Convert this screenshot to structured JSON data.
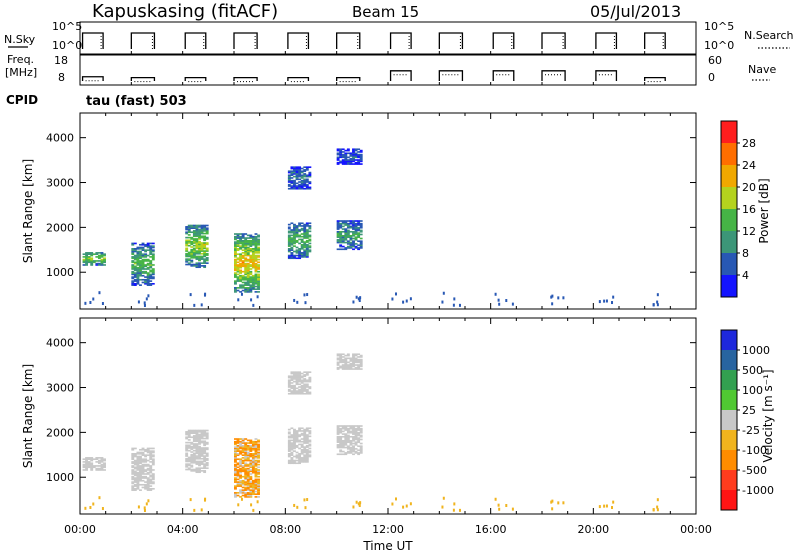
{
  "header": {
    "station": "Kapuskasing (fitACF)",
    "beam": "Beam 15",
    "date": "05/Jul/2013"
  },
  "strip": {
    "nsky_label": "N.Sky",
    "nsky_top": "10^5",
    "nsky_bottom": "10^0",
    "nsearch_label": "N.Search",
    "freq_label_1": "Freq.",
    "freq_label_2": "[MHz]",
    "freq_top": "18",
    "freq_bottom": "8",
    "nave_top": "60",
    "nave_bottom": "0",
    "nave_label": "Nave",
    "cpid_label": "CPID",
    "cpid_value": "tau (fast) 503"
  },
  "axes": {
    "y_label": "Slant Range [km]",
    "x_label": "Time UT",
    "x_ticks": [
      "00:00",
      "04:00",
      "08:00",
      "12:00",
      "16:00",
      "20:00",
      "00:00"
    ],
    "y_ticks": [
      "1000",
      "2000",
      "3000",
      "4000"
    ]
  },
  "power_scale": {
    "label": "Power [dB]",
    "ticks": [
      "4",
      "8",
      "12",
      "16",
      "20",
      "24",
      "28"
    ],
    "colors": [
      "#1414ff",
      "#2858b4",
      "#3c9678",
      "#46b446",
      "#b4d21e",
      "#f0a800",
      "#ff6e00",
      "#ff1e1e"
    ]
  },
  "velocity_scale": {
    "label": "Velocity [m s⁻¹]",
    "ticks": [
      "1000",
      "500",
      "100",
      "25",
      "-25",
      "-100",
      "-500",
      "-1000"
    ],
    "colors": [
      "#1e28dc",
      "#2864a0",
      "#32a050",
      "#50c832",
      "#c8c8c8",
      "#f0b41e",
      "#ff8c00",
      "#ff3c1e",
      "#ff1414"
    ]
  },
  "chart_data": {
    "type": "heatmap",
    "x_range_hours": [
      0,
      24
    ],
    "y_range_km": [
      180,
      4550
    ],
    "observation_blocks_hours": [
      [
        0.1,
        0.9
      ],
      [
        2.0,
        2.9
      ],
      [
        4.1,
        4.9
      ],
      [
        6.0,
        6.9
      ],
      [
        8.1,
        8.9
      ],
      [
        10.0,
        10.9
      ],
      [
        12.1,
        12.9
      ],
      [
        14.0,
        14.9
      ],
      [
        16.1,
        16.9
      ],
      [
        18.0,
        18.9
      ],
      [
        20.1,
        20.9
      ],
      [
        22.0,
        22.8
      ]
    ],
    "freq_mhz_blocks": [
      10.5,
      10,
      10,
      10,
      10,
      10,
      14,
      14,
      14,
      14,
      14,
      10
    ],
    "echo_regions": [
      {
        "t": [
          0.1,
          0.9
        ],
        "range_km": [
          1150,
          1450
        ],
        "power_db": 18,
        "velocity_ms": 0
      },
      {
        "t": [
          2.0,
          2.9
        ],
        "range_km": [
          700,
          1650
        ],
        "power_db": 14,
        "velocity_ms": 0
      },
      {
        "t": [
          4.1,
          4.9
        ],
        "range_km": [
          1100,
          2050
        ],
        "power_db": 18,
        "velocity_ms": 0
      },
      {
        "t": [
          6.0,
          6.9
        ],
        "range_km": [
          550,
          1850
        ],
        "power_db": 22,
        "velocity_ms": -100
      },
      {
        "t": [
          8.1,
          8.9
        ],
        "range_km": [
          1300,
          2100
        ],
        "power_db": 14,
        "velocity_ms": 0
      },
      {
        "t": [
          8.1,
          8.9
        ],
        "range_km": [
          2850,
          3350
        ],
        "power_db": 8,
        "velocity_ms": 0
      },
      {
        "t": [
          10.0,
          10.9
        ],
        "range_km": [
          1500,
          2150
        ],
        "power_db": 12,
        "velocity_ms": 0
      },
      {
        "t": [
          10.0,
          10.9
        ],
        "range_km": [
          3400,
          3750
        ],
        "power_db": 6,
        "velocity_ms": 0
      }
    ]
  }
}
